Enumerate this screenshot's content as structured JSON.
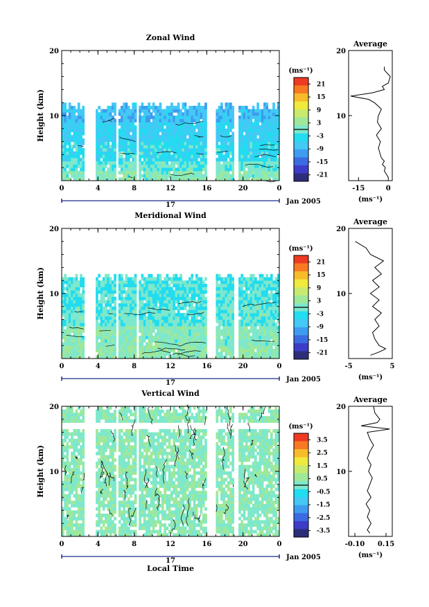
{
  "chart_data": [
    {
      "type": "heatmap",
      "title": "Zonal Wind",
      "ylabel": "Height (km)",
      "xlim": [
        0,
        24
      ],
      "ylim": [
        0,
        20
      ],
      "x_ticks": [
        "0",
        "4",
        "8",
        "12",
        "16",
        "20",
        "0"
      ],
      "y_ticks": [
        "20",
        "10"
      ],
      "date_axis": {
        "day_label": "17",
        "month_label": "Jan 2005"
      },
      "data_extent_km": [
        0,
        12
      ],
      "colorbar": {
        "unit": "(ms⁻¹)",
        "ticks": [
          "21",
          "15",
          "9",
          "3",
          "-3",
          "-9",
          "-15",
          "-21"
        ],
        "range": [
          -24,
          24
        ]
      },
      "dominant_values": {
        "0-1.5km": 1,
        "1.5-3km": -1,
        "3-6km": -4,
        "6-9km": -6,
        "9-12km": -8
      },
      "average_profile": {
        "title": "Average",
        "xlabel": "(ms⁻¹)",
        "x_ticks": [
          "-15",
          "0"
        ],
        "y_ticks": [
          "20",
          "10"
        ],
        "xlim": [
          -20,
          2
        ],
        "ylim": [
          0,
          20
        ],
        "height_km": [
          0.5,
          1,
          1.5,
          2,
          2.5,
          3,
          3.5,
          4,
          5,
          6,
          7,
          8,
          9,
          10,
          11,
          12,
          12.5,
          13,
          13.5,
          14,
          14.5,
          15,
          16,
          17,
          17.5
        ],
        "wind": [
          0,
          -1,
          -2,
          -1.5,
          -3,
          -2,
          -3.5,
          -4,
          -5,
          -4,
          -6,
          -3.5,
          -5.5,
          -5,
          -3.5,
          -7,
          -10,
          -19,
          -8,
          -2,
          -3,
          0,
          1,
          -2,
          -2
        ]
      }
    },
    {
      "type": "heatmap",
      "title": "Meridional Wind",
      "ylabel": "Height (km)",
      "xlim": [
        0,
        24
      ],
      "ylim": [
        0,
        20
      ],
      "x_ticks": [
        "0",
        "4",
        "8",
        "12",
        "16",
        "20",
        "0"
      ],
      "y_ticks": [
        "20",
        "10"
      ],
      "date_axis": {
        "day_label": "17",
        "month_label": "Jan 2005"
      },
      "data_extent_km": [
        0,
        13
      ],
      "colorbar": {
        "unit": "(ms⁻¹)",
        "ticks": [
          "21",
          "15",
          "9",
          "3",
          "-3",
          "-9",
          "-15",
          "-21"
        ],
        "range": [
          -24,
          24
        ]
      },
      "dominant_values": {
        "0-2km": 2,
        "2-5km": 1,
        "5-8km": -1,
        "8-13km": -2
      },
      "average_profile": {
        "title": "Average",
        "xlabel": "(ms⁻¹)",
        "x_ticks": [
          "-5",
          "5"
        ],
        "y_ticks": [
          "20",
          "10"
        ],
        "xlim": [
          -5,
          5
        ],
        "ylim": [
          0,
          20
        ],
        "height_km": [
          0.5,
          1,
          1.5,
          2,
          3,
          4,
          5,
          6,
          7,
          8,
          9,
          10,
          11,
          12,
          13,
          14,
          15,
          16,
          17,
          18
        ],
        "wind": [
          0,
          2,
          3.5,
          2,
          1,
          0.5,
          2,
          1,
          2.5,
          0.5,
          2,
          0,
          2,
          0.5,
          2.5,
          1,
          3,
          0,
          -1,
          -3.5
        ]
      }
    },
    {
      "type": "heatmap",
      "title": "Vertical Wind",
      "ylabel": "Height (km)",
      "xlabel": "Local Time",
      "xlim": [
        0,
        24
      ],
      "ylim": [
        0,
        20
      ],
      "x_ticks": [
        "0",
        "4",
        "8",
        "12",
        "16",
        "20",
        "0"
      ],
      "y_ticks": [
        "20",
        "10"
      ],
      "date_axis": {
        "day_label": "17",
        "month_label": "Jan 2005"
      },
      "data_extent_km": [
        0,
        20
      ],
      "colorbar": {
        "unit": "(ms⁻¹)",
        "ticks": [
          "3.5",
          "2.5",
          "1.5",
          "0.5",
          "-0.5",
          "-1.5",
          "-2.5",
          "-3.5"
        ],
        "range": [
          -4,
          4
        ]
      },
      "dominant_values": {
        "0-20km": 0.2
      },
      "average_profile": {
        "title": "Average",
        "xlabel": "(ms⁻¹)",
        "x_ticks": [
          "-0.10",
          "0.15"
        ],
        "y_ticks": [
          "20",
          "10"
        ],
        "xlim": [
          -0.15,
          0.2
        ],
        "ylim": [
          0,
          20
        ],
        "height_km": [
          0.5,
          1,
          2,
          3,
          4,
          5,
          6,
          7,
          8,
          9,
          10,
          11,
          12,
          13,
          14,
          15,
          16,
          16.5,
          17,
          17.5,
          18,
          19,
          20
        ],
        "wind": [
          0.02,
          0.0,
          0.03,
          0.0,
          0.02,
          -0.01,
          0.03,
          0.0,
          0.02,
          0.04,
          0.01,
          0.03,
          0.0,
          0.02,
          0.05,
          0.02,
          0.0,
          0.18,
          -0.05,
          0.08,
          0.1,
          0.06,
          0.05
        ]
      }
    }
  ],
  "colors": {
    "scale": [
      "#2d2d7a",
      "#3c3cc8",
      "#3b6be0",
      "#3d9cf0",
      "#44c8f5",
      "#22dcef",
      "#7ee8cc",
      "#9fe89a",
      "#c8ea6e",
      "#f0ea3c",
      "#f7bc2a",
      "#f77a22",
      "#ee3a22"
    ],
    "axis": "#000000",
    "time_bar": "#1a2a8a"
  }
}
